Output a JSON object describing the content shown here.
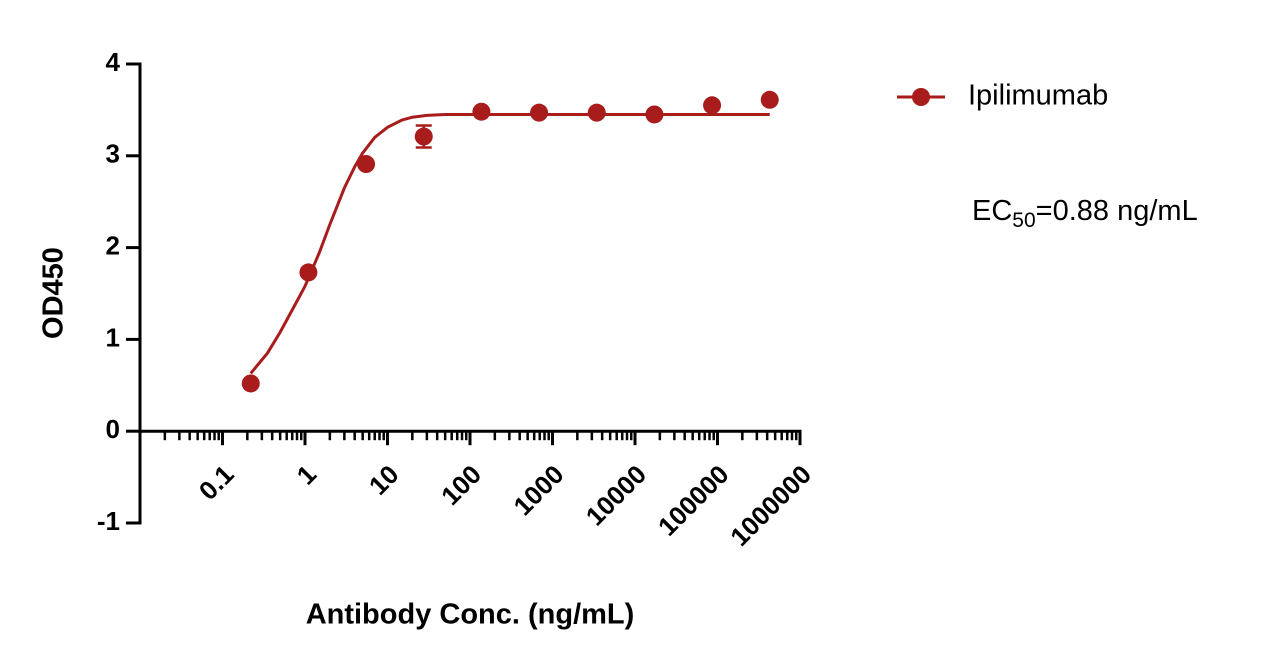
{
  "chart_data": {
    "type": "scatter",
    "xlabel": "Antibody Conc. (ng/mL)",
    "ylabel": "OD450",
    "xscale": "log",
    "xlim": [
      0.01,
      1000000
    ],
    "xticks": [
      0.1,
      1,
      10,
      100,
      1000,
      10000,
      100000,
      1000000
    ],
    "ylim": [
      -1,
      4
    ],
    "yticks": [
      -1,
      0,
      1,
      2,
      3,
      4
    ],
    "series": [
      {
        "name": "Ipilimumab",
        "color": "#a81c1c",
        "x": [
          0.22,
          1.1,
          5.5,
          27.5,
          137.5,
          687.5,
          3437.5,
          17187.5,
          85937.5,
          429687.5
        ],
        "values": [
          0.52,
          1.73,
          2.91,
          3.21,
          3.48,
          3.47,
          3.47,
          3.45,
          3.55,
          3.61
        ],
        "errors": [
          null,
          null,
          null,
          0.12,
          null,
          null,
          null,
          null,
          null,
          null
        ]
      }
    ],
    "fit": {
      "color": "#a81c1c",
      "x": [
        0.22,
        0.35,
        0.5,
        0.7,
        1,
        1.5,
        2,
        3,
        4,
        5,
        7,
        10,
        15,
        20,
        30,
        50,
        100,
        429687.5
      ],
      "values": [
        0.63,
        0.85,
        1.08,
        1.32,
        1.58,
        1.95,
        2.25,
        2.65,
        2.88,
        3.03,
        3.2,
        3.31,
        3.39,
        3.42,
        3.44,
        3.45,
        3.45,
        3.45
      ]
    },
    "annotation": [
      "EC",
      "50",
      "=0.88 ng/mL"
    ],
    "legend": "top-right"
  }
}
